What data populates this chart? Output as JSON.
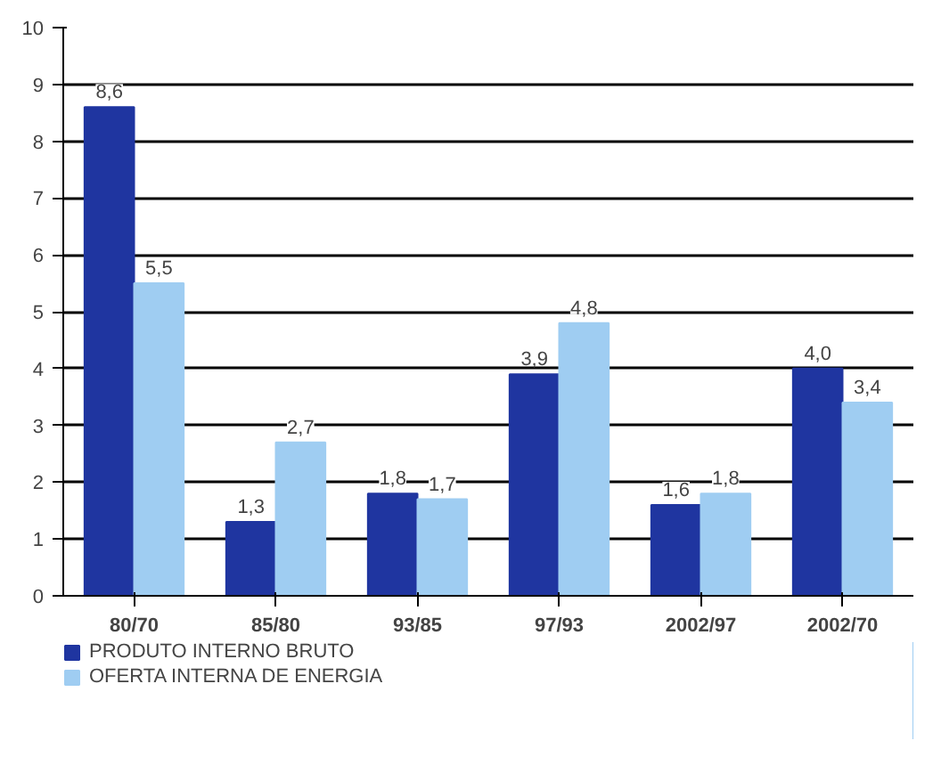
{
  "chart_data": {
    "type": "bar",
    "categories": [
      "80/70",
      "85/80",
      "93/85",
      "97/93",
      "2002/97",
      "2002/70"
    ],
    "series": [
      {
        "name": "PRODUTO INTERNO BRUTO",
        "color": "#1f35a0",
        "values": [
          8.6,
          1.3,
          1.8,
          3.9,
          1.6,
          4.0
        ],
        "value_labels": [
          "8,6",
          "1,3",
          "1,8",
          "3,9",
          "1,6",
          "4,0"
        ]
      },
      {
        "name": "OFERTA INTERNA DE ENERGIA",
        "color": "#9fcdf2",
        "values": [
          5.5,
          2.7,
          1.7,
          4.8,
          1.8,
          3.4
        ],
        "value_labels": [
          "5,5",
          "2,7",
          "1,7",
          "4,8",
          "1,8",
          "3,4"
        ]
      }
    ],
    "ylim": [
      0,
      10
    ],
    "yticks": [
      0,
      1,
      2,
      3,
      4,
      5,
      6,
      7,
      8,
      9,
      10
    ],
    "grid": "y",
    "legend": "bottom"
  }
}
